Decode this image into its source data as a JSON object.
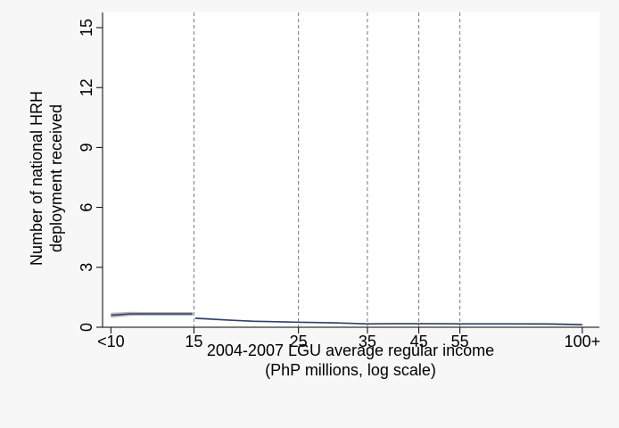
{
  "chart_data": {
    "type": "line",
    "xlabel": [
      "2004-2007 LGU average regular income",
      "(PhP millions, log scale)"
    ],
    "ylabel": [
      "Number of national HRH",
      "deployment received"
    ],
    "xscale": "log",
    "xlim": [
      9.6,
      108.7
    ],
    "ylim": [
      0,
      15
    ],
    "xticks": [
      {
        "value": 10,
        "label": "<10"
      },
      15,
      25,
      35,
      45,
      55,
      {
        "value": 100,
        "label": "100+"
      }
    ],
    "yticks": [
      0,
      3,
      6,
      9,
      12,
      15
    ],
    "xlines": [
      15,
      25,
      35,
      45,
      55
    ],
    "series": [
      {
        "color": "#2f3f6e",
        "band_color": "#b4b4b4",
        "x": [
          10,
          11,
          12,
          13,
          14.9,
          15,
          15.1,
          18,
          20,
          25,
          30,
          35,
          40,
          45,
          55,
          70,
          85,
          100
        ],
        "values": [
          0.6,
          0.67,
          0.67,
          0.67,
          0.67,
          null,
          0.45,
          0.35,
          0.3,
          0.25,
          0.22,
          0.17,
          0.18,
          0.18,
          0.17,
          0.17,
          0.16,
          0.13
        ],
        "lower": [
          0.48,
          0.57,
          0.58,
          0.58,
          0.58,
          null,
          0.4,
          0.31,
          0.26,
          0.21,
          0.18,
          0.13,
          0.14,
          0.14,
          0.13,
          0.13,
          0.11,
          0.08
        ],
        "upper": [
          0.72,
          0.77,
          0.76,
          0.76,
          0.76,
          null,
          0.5,
          0.39,
          0.34,
          0.29,
          0.26,
          0.21,
          0.22,
          0.22,
          0.21,
          0.21,
          0.21,
          0.18
        ]
      }
    ]
  }
}
